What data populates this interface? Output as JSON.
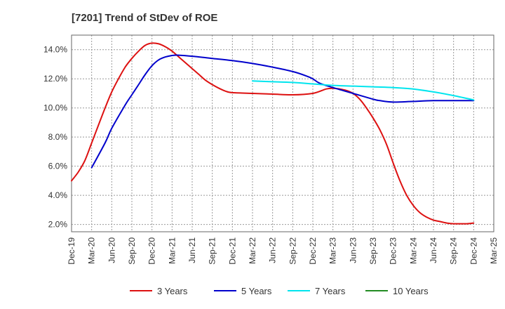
{
  "chart_data": {
    "type": "line",
    "title": "[7201]  Trend of StDev of ROE",
    "xlabel": "",
    "ylabel": "",
    "x_ticks": [
      "Dec-19",
      "Mar-20",
      "Jun-20",
      "Sep-20",
      "Dec-20",
      "Mar-21",
      "Jun-21",
      "Sep-21",
      "Dec-21",
      "Mar-22",
      "Jun-22",
      "Sep-22",
      "Dec-22",
      "Mar-23",
      "Jun-23",
      "Sep-23",
      "Dec-23",
      "Mar-24",
      "Jun-24",
      "Sep-24",
      "Dec-24",
      "Mar-25"
    ],
    "y_ticks": [
      "2.0%",
      "4.0%",
      "6.0%",
      "8.0%",
      "10.0%",
      "12.0%",
      "14.0%"
    ],
    "ylim": [
      1.5,
      15.0
    ],
    "grid": true,
    "legend_position": "bottom",
    "series": [
      {
        "name": "3 Years",
        "color": "#dd1111",
        "points": [
          [
            "Dec-19",
            5.0
          ],
          [
            "Jan-20",
            5.6
          ],
          [
            "Feb-20",
            6.4
          ],
          [
            "Mar-20",
            7.6
          ],
          [
            "Apr-20",
            8.8
          ],
          [
            "May-20",
            10.0
          ],
          [
            "Jun-20",
            11.1
          ],
          [
            "Jul-20",
            12.0
          ],
          [
            "Aug-20",
            12.8
          ],
          [
            "Sep-20",
            13.4
          ],
          [
            "Oct-20",
            13.9
          ],
          [
            "Nov-20",
            14.3
          ],
          [
            "Dec-20",
            14.45
          ],
          [
            "Jan-21",
            14.4
          ],
          [
            "Feb-21",
            14.2
          ],
          [
            "Mar-21",
            13.9
          ],
          [
            "Apr-21",
            13.5
          ],
          [
            "May-21",
            13.1
          ],
          [
            "Jun-21",
            12.7
          ],
          [
            "Jul-21",
            12.3
          ],
          [
            "Aug-21",
            11.9
          ],
          [
            "Sep-21",
            11.6
          ],
          [
            "Oct-21",
            11.35
          ],
          [
            "Nov-21",
            11.15
          ],
          [
            "Dec-21",
            11.05
          ],
          [
            "Mar-22",
            11.0
          ],
          [
            "Jun-22",
            10.95
          ],
          [
            "Sep-22",
            10.9
          ],
          [
            "Dec-22",
            11.0
          ],
          [
            "Feb-23",
            11.3
          ],
          [
            "Mar-23",
            11.35
          ],
          [
            "Apr-23",
            11.3
          ],
          [
            "May-23",
            11.2
          ],
          [
            "Jun-23",
            11.0
          ],
          [
            "Jul-23",
            10.6
          ],
          [
            "Aug-23",
            10.0
          ],
          [
            "Sep-23",
            9.3
          ],
          [
            "Oct-23",
            8.5
          ],
          [
            "Nov-23",
            7.5
          ],
          [
            "Dec-23",
            6.2
          ],
          [
            "Jan-24",
            5.0
          ],
          [
            "Feb-24",
            4.0
          ],
          [
            "Mar-24",
            3.3
          ],
          [
            "Apr-24",
            2.8
          ],
          [
            "May-24",
            2.5
          ],
          [
            "Jun-24",
            2.3
          ],
          [
            "Jul-24",
            2.2
          ],
          [
            "Aug-24",
            2.1
          ],
          [
            "Sep-24",
            2.05
          ],
          [
            "Oct-24",
            2.05
          ],
          [
            "Nov-24",
            2.05
          ],
          [
            "Dec-24",
            2.1
          ]
        ]
      },
      {
        "name": "5 Years",
        "color": "#0000cc",
        "points": [
          [
            "Mar-20",
            5.9
          ],
          [
            "May-20",
            7.6
          ],
          [
            "Jun-20",
            8.6
          ],
          [
            "Aug-20",
            10.2
          ],
          [
            "Sep-20",
            10.9
          ],
          [
            "Oct-20",
            11.6
          ],
          [
            "Nov-20",
            12.3
          ],
          [
            "Dec-20",
            12.9
          ],
          [
            "Jan-21",
            13.3
          ],
          [
            "Feb-21",
            13.5
          ],
          [
            "Mar-21",
            13.6
          ],
          [
            "Apr-21",
            13.62
          ],
          [
            "Jun-21",
            13.55
          ],
          [
            "Sep-21",
            13.4
          ],
          [
            "Dec-21",
            13.25
          ],
          [
            "Mar-22",
            13.05
          ],
          [
            "Jun-22",
            12.8
          ],
          [
            "Sep-22",
            12.5
          ],
          [
            "Nov-22",
            12.2
          ],
          [
            "Dec-22",
            12.0
          ],
          [
            "Jan-23",
            11.7
          ],
          [
            "Mar-23",
            11.4
          ],
          [
            "Jun-23",
            11.0
          ],
          [
            "Sep-23",
            10.6
          ],
          [
            "Oct-23",
            10.5
          ],
          [
            "Dec-23",
            10.4
          ],
          [
            "Mar-24",
            10.45
          ],
          [
            "Jun-24",
            10.5
          ],
          [
            "Sep-24",
            10.5
          ],
          [
            "Dec-24",
            10.5
          ]
        ]
      },
      {
        "name": "7 Years",
        "color": "#00e5ee",
        "points": [
          [
            "Mar-22",
            11.85
          ],
          [
            "Jun-22",
            11.8
          ],
          [
            "Sep-22",
            11.75
          ],
          [
            "Dec-22",
            11.65
          ],
          [
            "Mar-23",
            11.55
          ],
          [
            "Jun-23",
            11.5
          ],
          [
            "Sep-23",
            11.45
          ],
          [
            "Dec-23",
            11.4
          ],
          [
            "Mar-24",
            11.3
          ],
          [
            "Jun-24",
            11.1
          ],
          [
            "Sep-24",
            10.85
          ],
          [
            "Dec-24",
            10.55
          ]
        ]
      },
      {
        "name": "10 Years",
        "color": "#228b22",
        "points": []
      }
    ]
  }
}
